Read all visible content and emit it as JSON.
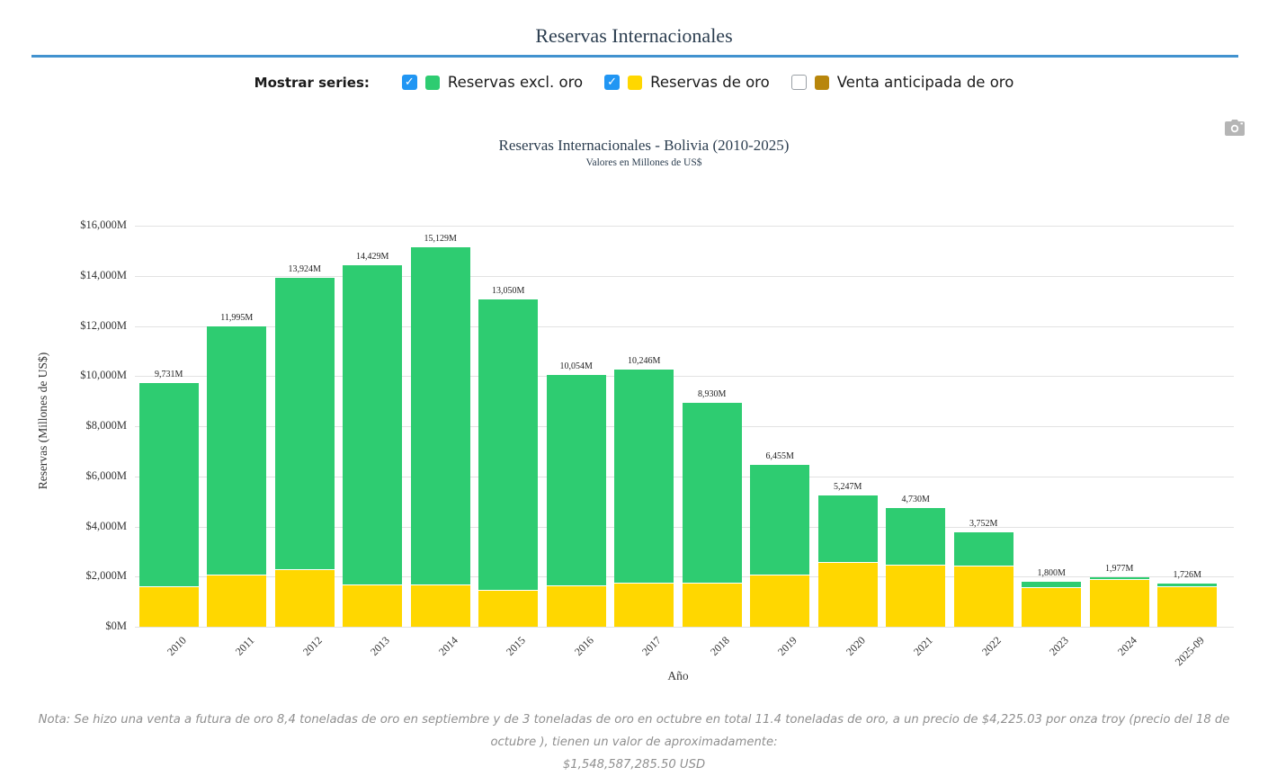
{
  "page": {
    "title": "Reservas Internacionales",
    "accent_color": "#4292cf",
    "series_toggle": {
      "label": "Mostrar series:",
      "check_glyph": "✓",
      "items": [
        {
          "id": "reservas-excl-oro",
          "label": "Reservas excl. oro",
          "checked": true,
          "color": "#2ecc71"
        },
        {
          "id": "reservas-de-oro",
          "label": "Reservas de oro",
          "checked": true,
          "color": "#ffd700"
        },
        {
          "id": "venta-anticipada-de-oro",
          "label": "Venta anticipada de oro",
          "checked": false,
          "color": "#b8860b"
        }
      ]
    },
    "toolbar": {
      "camera_icon": "camera-icon",
      "icon_color": "#b5b5b5"
    }
  },
  "chart_data": {
    "type": "bar",
    "stacked": true,
    "title": "Reservas Internacionales - Bolivia (2010-2025)",
    "subtitle": "Valores en Millones de US$",
    "xlabel": "Año",
    "ylabel": "Reservas (Millones de US$)",
    "categories": [
      "2010",
      "2011",
      "2012",
      "2013",
      "2014",
      "2015",
      "2016",
      "2017",
      "2018",
      "2019",
      "2020",
      "2021",
      "2022",
      "2023",
      "2024",
      "2025-09"
    ],
    "series": [
      {
        "name": "Reservas de oro",
        "color": "#ffd700",
        "values": [
          1580,
          2040,
          2245,
          1645,
          1655,
          1420,
          1600,
          1740,
          1740,
          2030,
          2565,
          2435,
          2420,
          1550,
          1880,
          1585
        ]
      },
      {
        "name": "Reservas excl. oro",
        "color": "#2ecc71",
        "values": [
          8151,
          9955,
          11679,
          12784,
          13474,
          11630,
          8454,
          8506,
          7190,
          4425,
          2682,
          2295,
          1332,
          250,
          97,
          141
        ]
      }
    ],
    "stack_bottom_to_top": [
      "Reservas de oro",
      "Reservas excl. oro"
    ],
    "totals": [
      9731,
      11995,
      13924,
      14429,
      15129,
      13050,
      10054,
      10246,
      8930,
      6455,
      5247,
      4730,
      3752,
      1800,
      1977,
      1726
    ],
    "total_labels": [
      "9,731M",
      "11,995M",
      "13,924M",
      "14,429M",
      "15,129M",
      "13,050M",
      "10,054M",
      "10,246M",
      "8,930M",
      "6,455M",
      "5,247M",
      "4,730M",
      "3,752M",
      "1,800M",
      "1,977M",
      "1,726M"
    ],
    "ylim": [
      0,
      16000
    ],
    "ytick_step": 2000,
    "ytick_labels": [
      "$0M",
      "$2,000M",
      "$4,000M",
      "$6,000M",
      "$8,000M",
      "$10,000M",
      "$12,000M",
      "$14,000M",
      "$16,000M"
    ],
    "grid": true,
    "grid_color": "#e2e2e2",
    "legend_position": "top-external"
  },
  "note": {
    "line1": "Nota: Se hizo una venta a futura de oro 8,4 toneladas de oro en septiembre y de 3 toneladas de oro en octubre en total 11.4 toneladas de oro, a un precio de $4,225.03 por onza troy (precio del 18 de octubre ), tienen un valor de aproximadamente:",
    "line2": "$1,548,587,285.50 USD"
  }
}
